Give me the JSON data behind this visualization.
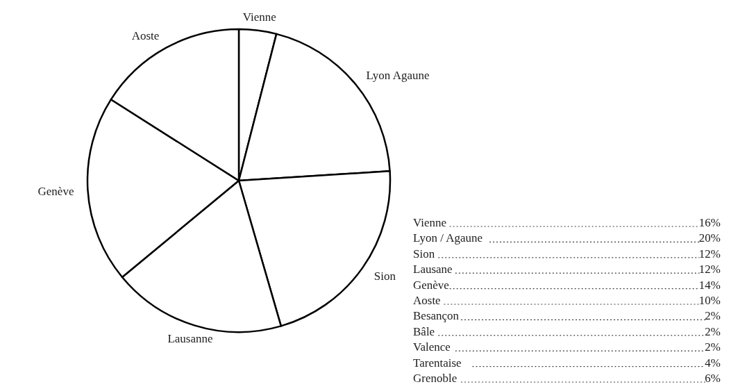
{
  "chart_data": {
    "type": "pie",
    "categories": [
      "Vienne",
      "Lyon Agaune",
      "Sion",
      "Lausanne",
      "Genève",
      "Aoste"
    ],
    "values": [
      4,
      20,
      21.5,
      18.5,
      20,
      16
    ],
    "colors": [
      "#ffffff",
      "#ffffff",
      "#ffffff",
      "#ffffff",
      "#ffffff",
      "#ffffff"
    ],
    "annotations": [
      "Vienne 16%",
      "Lyon / Agaune 20%",
      "Sion 12%",
      "Lausane 12%",
      "Genève 14%",
      "Aoste 10%",
      "Besançon 2%",
      "Bâle 2%",
      "Valence 2%",
      "Tarentaise 4%",
      "Grenoble 6%"
    ]
  }
}
